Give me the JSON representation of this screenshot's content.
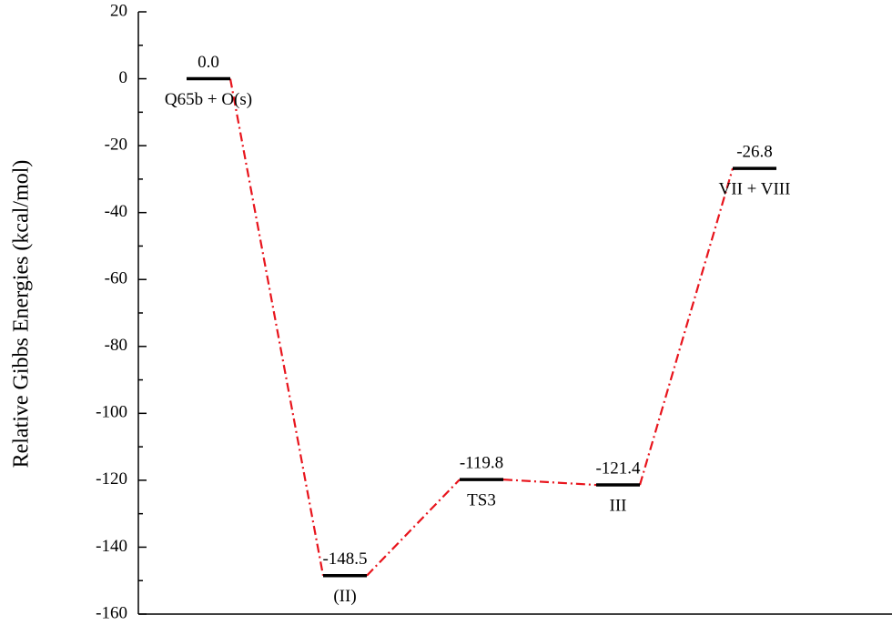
{
  "chart_data": {
    "type": "energy",
    "ylabel": "Relative Gibbs Energies (kcal/mol)",
    "categories": [
      "Q65b + O(s)",
      "(II)",
      "TS3",
      "III",
      "VII + VIII"
    ],
    "values": [
      0.0,
      -148.5,
      -119.8,
      -121.4,
      -26.8
    ],
    "value_labels": [
      "0.0",
      "-148.5",
      "-119.8",
      "-121.4",
      "-26.8"
    ],
    "ylim": [
      -160,
      20
    ],
    "yticks": [
      -160,
      -140,
      -120,
      -100,
      -80,
      -60,
      -40,
      -20,
      0,
      20
    ],
    "yminorticks": [
      -150,
      -130,
      -110,
      -90,
      -70,
      -50,
      -30,
      -10,
      10
    ],
    "level_color": "#000000",
    "connector_color": "#e8141c"
  }
}
